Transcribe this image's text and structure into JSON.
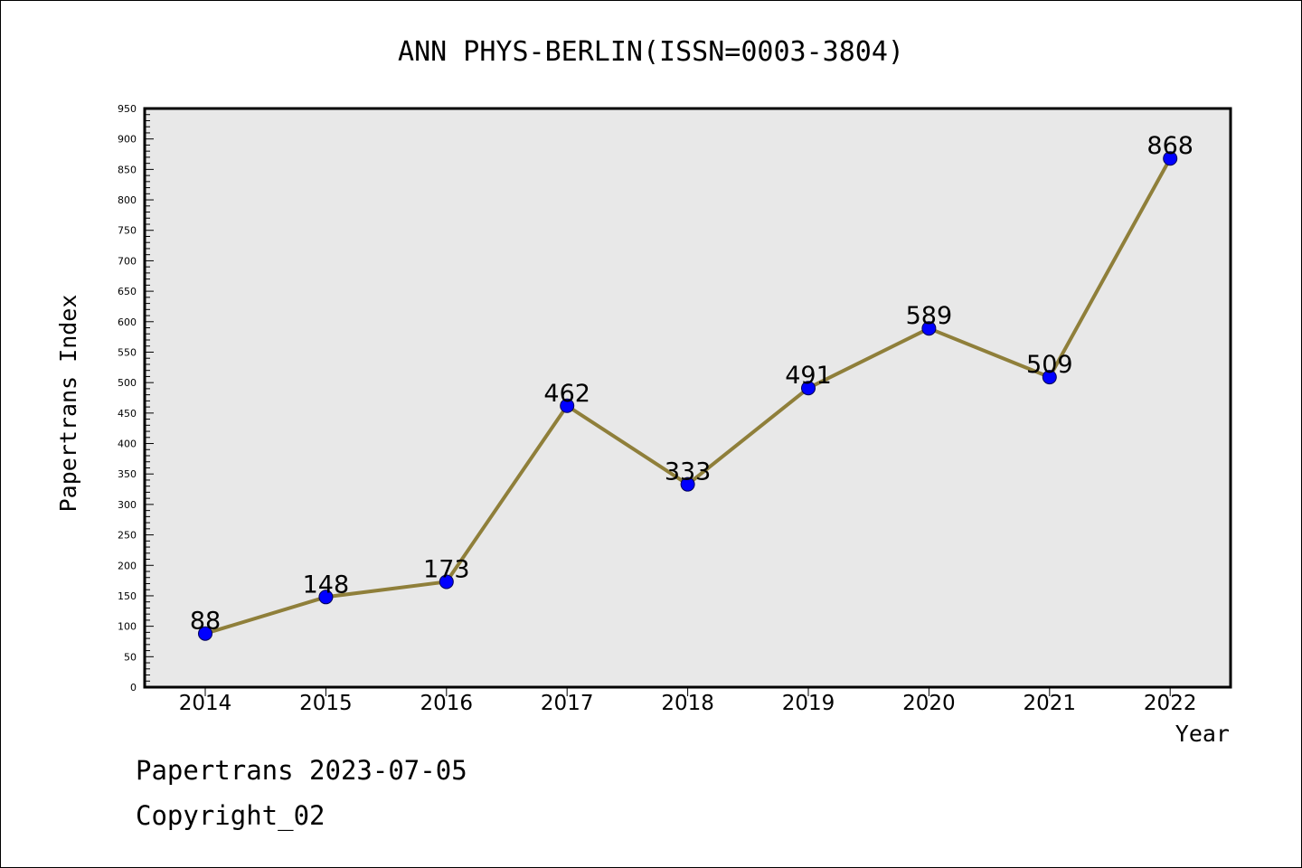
{
  "chart_data": {
    "type": "line",
    "title": "ANN PHYS-BERLIN(ISSN=0003-3804)",
    "xlabel": "Year",
    "ylabel": "Papertrans Index",
    "categories": [
      "2014",
      "2015",
      "2016",
      "2017",
      "2018",
      "2019",
      "2020",
      "2021",
      "2022"
    ],
    "values": [
      88,
      148,
      173,
      462,
      333,
      491,
      589,
      509,
      868
    ],
    "data_labels": [
      "88",
      "148",
      "173",
      "462",
      "333",
      "491",
      "589",
      "509",
      "868"
    ],
    "ylim": [
      0,
      950
    ],
    "yticks": [
      "0",
      "50",
      "100",
      "150",
      "200",
      "250",
      "300",
      "350",
      "400",
      "450",
      "500",
      "550",
      "600",
      "650",
      "700",
      "750",
      "800",
      "850",
      "900",
      "950"
    ],
    "ytick_values": [
      0,
      50,
      100,
      150,
      200,
      250,
      300,
      350,
      400,
      450,
      500,
      550,
      600,
      650,
      700,
      750,
      800,
      850,
      900,
      950
    ],
    "line_color": "#8f7f3a",
    "marker_color": "#0000ff",
    "plot_background": "#e8e8e8",
    "grid": false,
    "legend": "none"
  },
  "footer": {
    "line1": "Papertrans 2023-07-05",
    "line2": "Copyright_02"
  }
}
